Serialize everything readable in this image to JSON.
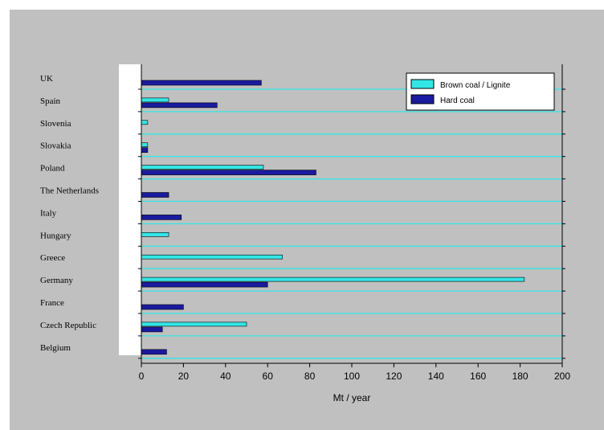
{
  "chart_data": {
    "type": "bar",
    "orientation": "horizontal",
    "categories": [
      "UK",
      "Spain",
      "Slovenia",
      "Slovakia",
      "Poland",
      "The Netherlands",
      "Italy",
      "Hungary",
      "Greece",
      "Germany",
      "France",
      "Czech Republic",
      "Belgium"
    ],
    "series": [
      {
        "name": "Brown coal / Lignite",
        "color": "#33e6e6",
        "values": [
          0,
          13,
          3,
          3,
          58,
          0,
          0,
          13,
          67,
          182,
          0,
          50,
          0
        ]
      },
      {
        "name": "Hard coal",
        "color": "#1a1aa0",
        "values": [
          57,
          36,
          0,
          3,
          83,
          13,
          19,
          0,
          0,
          60,
          20,
          10,
          12
        ]
      }
    ],
    "xlabel": "Mt / year",
    "ylabel": "",
    "xlim": [
      0,
      200
    ],
    "xticks": [
      "0",
      "20",
      "40",
      "60",
      "80",
      "100",
      "120",
      "140",
      "160",
      "180",
      "200"
    ],
    "grid": "horizontal",
    "grid_color": "#33e6e6",
    "legend_position": "top-right"
  }
}
